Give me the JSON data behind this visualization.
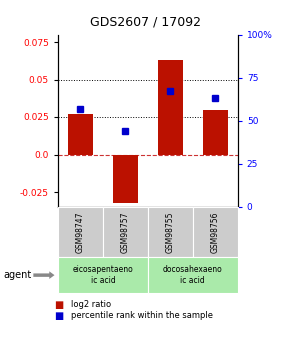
{
  "title": "GDS2607 / 17092",
  "samples": [
    "GSM98747",
    "GSM98757",
    "GSM98755",
    "GSM98756"
  ],
  "log2_ratios": [
    0.027,
    -0.032,
    0.063,
    0.03
  ],
  "percentile_ranks": [
    57,
    44,
    67,
    63
  ],
  "agents": [
    {
      "label": "eicosapentaeno\nic acid",
      "samples": [
        0,
        1
      ],
      "color": "#aaeaaa"
    },
    {
      "label": "docosahexaeno\nic acid",
      "samples": [
        2,
        3
      ],
      "color": "#aaeaaa"
    }
  ],
  "bar_color": "#BB1100",
  "dot_color": "#0000CC",
  "ylim_left": [
    -0.035,
    0.08
  ],
  "ylim_right": [
    0,
    100
  ],
  "left_yticks": [
    -0.025,
    0.0,
    0.025,
    0.05,
    0.075
  ],
  "right_yticks": [
    0,
    25,
    50,
    75,
    100
  ],
  "right_yticklabels": [
    "0",
    "25",
    "50",
    "75",
    "100%"
  ],
  "hline_zero_color": "#CC3333",
  "hline_dotted_values": [
    0.025,
    0.05
  ],
  "hline_dotted_color": "black",
  "background_color": "#ffffff",
  "sample_box_color": "#cccccc",
  "legend_red_label": "log2 ratio",
  "legend_blue_label": "percentile rank within the sample"
}
